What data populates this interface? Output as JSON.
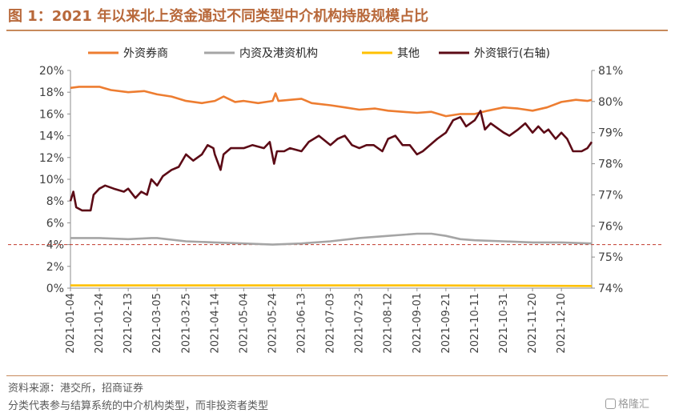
{
  "title": "图 1：2021 年以来北上资金通过不同类型中介机构持股规模占比",
  "source": "资料来源：港交所，招商证券",
  "note": "分类代表参与结算系统的中介机构类型，而非投资者类型",
  "watermark": "格隆汇",
  "chart_data": {
    "type": "line",
    "x_ticks": [
      "2021-01-04",
      "2021-01-24",
      "2021-02-13",
      "2021-03-05",
      "2021-03-25",
      "2021-04-14",
      "2021-05-04",
      "2021-05-24",
      "2021-06-13",
      "2021-07-03",
      "2021-07-23",
      "2021-08-12",
      "2021-09-01",
      "2021-09-21",
      "2021-10-11",
      "2021-10-31",
      "2021-11-20",
      "2021-12-10"
    ],
    "x_range": [
      "2021-01-04",
      "2021-12-31"
    ],
    "y_left": {
      "min": 0,
      "max": 20,
      "step": 2,
      "ticks": [
        "0%",
        "2%",
        "4%",
        "6%",
        "8%",
        "10%",
        "12%",
        "14%",
        "16%",
        "18%",
        "20%"
      ]
    },
    "y_right": {
      "min": 74,
      "max": 81,
      "step": 1,
      "ticks": [
        "74%",
        "75%",
        "76%",
        "77%",
        "78%",
        "79%",
        "80%",
        "81%"
      ]
    },
    "reference_line": {
      "axis": "left",
      "value": 4.0,
      "style": "dashed",
      "color": "#c0392b"
    },
    "legend_position": "top",
    "series": [
      {
        "name": "外资券商",
        "axis": "left",
        "color": "#ed7d31",
        "points": [
          [
            "2021-01-04",
            18.4
          ],
          [
            "2021-01-10",
            18.5
          ],
          [
            "2021-01-24",
            18.5
          ],
          [
            "2021-02-01",
            18.2
          ],
          [
            "2021-02-13",
            18.0
          ],
          [
            "2021-02-24",
            18.1
          ],
          [
            "2021-03-05",
            17.8
          ],
          [
            "2021-03-15",
            17.6
          ],
          [
            "2021-03-25",
            17.2
          ],
          [
            "2021-04-05",
            17.0
          ],
          [
            "2021-04-14",
            17.2
          ],
          [
            "2021-04-20",
            17.6
          ],
          [
            "2021-04-28",
            17.1
          ],
          [
            "2021-05-04",
            17.2
          ],
          [
            "2021-05-14",
            17.0
          ],
          [
            "2021-05-24",
            17.2
          ],
          [
            "2021-05-26",
            17.9
          ],
          [
            "2021-05-28",
            17.2
          ],
          [
            "2021-06-13",
            17.4
          ],
          [
            "2021-06-20",
            17.0
          ],
          [
            "2021-07-03",
            16.8
          ],
          [
            "2021-07-13",
            16.6
          ],
          [
            "2021-07-23",
            16.4
          ],
          [
            "2021-08-03",
            16.5
          ],
          [
            "2021-08-12",
            16.3
          ],
          [
            "2021-08-22",
            16.2
          ],
          [
            "2021-09-01",
            16.1
          ],
          [
            "2021-09-11",
            16.2
          ],
          [
            "2021-09-21",
            15.8
          ],
          [
            "2021-10-01",
            16.0
          ],
          [
            "2021-10-11",
            16.0
          ],
          [
            "2021-10-20",
            16.3
          ],
          [
            "2021-10-31",
            16.6
          ],
          [
            "2021-11-10",
            16.5
          ],
          [
            "2021-11-20",
            16.3
          ],
          [
            "2021-11-30",
            16.6
          ],
          [
            "2021-12-10",
            17.1
          ],
          [
            "2021-12-20",
            17.3
          ],
          [
            "2021-12-28",
            17.2
          ],
          [
            "2021-12-31",
            17.3
          ]
        ]
      },
      {
        "name": "内资及港资机构",
        "axis": "left",
        "color": "#a5a5a5",
        "points": [
          [
            "2021-01-04",
            4.6
          ],
          [
            "2021-01-24",
            4.6
          ],
          [
            "2021-02-13",
            4.5
          ],
          [
            "2021-03-01",
            4.6
          ],
          [
            "2021-03-05",
            4.6
          ],
          [
            "2021-03-25",
            4.3
          ],
          [
            "2021-04-14",
            4.2
          ],
          [
            "2021-05-04",
            4.1
          ],
          [
            "2021-05-24",
            4.0
          ],
          [
            "2021-06-13",
            4.1
          ],
          [
            "2021-07-03",
            4.3
          ],
          [
            "2021-07-23",
            4.6
          ],
          [
            "2021-08-12",
            4.8
          ],
          [
            "2021-09-01",
            5.0
          ],
          [
            "2021-09-11",
            5.0
          ],
          [
            "2021-09-21",
            4.8
          ],
          [
            "2021-10-01",
            4.5
          ],
          [
            "2021-10-11",
            4.4
          ],
          [
            "2021-10-31",
            4.3
          ],
          [
            "2021-11-20",
            4.2
          ],
          [
            "2021-12-10",
            4.2
          ],
          [
            "2021-12-31",
            4.1
          ]
        ]
      },
      {
        "name": "其他",
        "axis": "left",
        "color": "#ffc000",
        "points": [
          [
            "2021-01-04",
            0.25
          ],
          [
            "2021-06-01",
            0.25
          ],
          [
            "2021-09-01",
            0.25
          ],
          [
            "2021-12-31",
            0.2
          ]
        ]
      },
      {
        "name": "外资银行(右轴)",
        "axis": "right",
        "color": "#5c0b16",
        "points": [
          [
            "2021-01-04",
            76.8
          ],
          [
            "2021-01-06",
            77.1
          ],
          [
            "2021-01-08",
            76.6
          ],
          [
            "2021-01-12",
            76.5
          ],
          [
            "2021-01-18",
            76.5
          ],
          [
            "2021-01-20",
            77.0
          ],
          [
            "2021-01-24",
            77.2
          ],
          [
            "2021-01-28",
            77.3
          ],
          [
            "2021-02-03",
            77.2
          ],
          [
            "2021-02-10",
            77.1
          ],
          [
            "2021-02-13",
            77.2
          ],
          [
            "2021-02-18",
            76.9
          ],
          [
            "2021-02-22",
            77.1
          ],
          [
            "2021-02-26",
            77.0
          ],
          [
            "2021-03-01",
            77.5
          ],
          [
            "2021-03-05",
            77.3
          ],
          [
            "2021-03-09",
            77.6
          ],
          [
            "2021-03-15",
            77.8
          ],
          [
            "2021-03-20",
            77.9
          ],
          [
            "2021-03-25",
            78.3
          ],
          [
            "2021-03-30",
            78.1
          ],
          [
            "2021-04-05",
            78.3
          ],
          [
            "2021-04-09",
            78.6
          ],
          [
            "2021-04-13",
            78.5
          ],
          [
            "2021-04-14",
            78.3
          ],
          [
            "2021-04-18",
            77.8
          ],
          [
            "2021-04-20",
            78.3
          ],
          [
            "2021-04-25",
            78.5
          ],
          [
            "2021-05-04",
            78.5
          ],
          [
            "2021-05-10",
            78.6
          ],
          [
            "2021-05-18",
            78.5
          ],
          [
            "2021-05-22",
            78.7
          ],
          [
            "2021-05-25",
            78.0
          ],
          [
            "2021-05-27",
            78.4
          ],
          [
            "2021-06-01",
            78.4
          ],
          [
            "2021-06-05",
            78.5
          ],
          [
            "2021-06-13",
            78.4
          ],
          [
            "2021-06-18",
            78.7
          ],
          [
            "2021-06-25",
            78.9
          ],
          [
            "2021-07-03",
            78.6
          ],
          [
            "2021-07-08",
            78.8
          ],
          [
            "2021-07-13",
            78.9
          ],
          [
            "2021-07-18",
            78.6
          ],
          [
            "2021-07-23",
            78.5
          ],
          [
            "2021-07-28",
            78.6
          ],
          [
            "2021-08-02",
            78.6
          ],
          [
            "2021-08-08",
            78.4
          ],
          [
            "2021-08-12",
            78.8
          ],
          [
            "2021-08-17",
            78.9
          ],
          [
            "2021-08-22",
            78.6
          ],
          [
            "2021-08-27",
            78.6
          ],
          [
            "2021-09-01",
            78.3
          ],
          [
            "2021-09-05",
            78.4
          ],
          [
            "2021-09-10",
            78.6
          ],
          [
            "2021-09-15",
            78.8
          ],
          [
            "2021-09-21",
            79.0
          ],
          [
            "2021-09-26",
            79.4
          ],
          [
            "2021-10-01",
            79.5
          ],
          [
            "2021-10-05",
            79.2
          ],
          [
            "2021-10-11",
            79.4
          ],
          [
            "2021-10-15",
            79.7
          ],
          [
            "2021-10-18",
            79.1
          ],
          [
            "2021-10-22",
            79.3
          ],
          [
            "2021-10-28",
            79.1
          ],
          [
            "2021-10-31",
            79.0
          ],
          [
            "2021-11-04",
            78.9
          ],
          [
            "2021-11-10",
            79.1
          ],
          [
            "2021-11-15",
            79.3
          ],
          [
            "2021-11-20",
            79.0
          ],
          [
            "2021-11-24",
            79.2
          ],
          [
            "2021-11-28",
            79.0
          ],
          [
            "2021-12-01",
            79.1
          ],
          [
            "2021-12-06",
            78.8
          ],
          [
            "2021-12-10",
            79.0
          ],
          [
            "2021-12-14",
            78.8
          ],
          [
            "2021-12-18",
            78.4
          ],
          [
            "2021-12-24",
            78.4
          ],
          [
            "2021-12-28",
            78.5
          ],
          [
            "2021-12-31",
            78.7
          ]
        ]
      }
    ]
  }
}
